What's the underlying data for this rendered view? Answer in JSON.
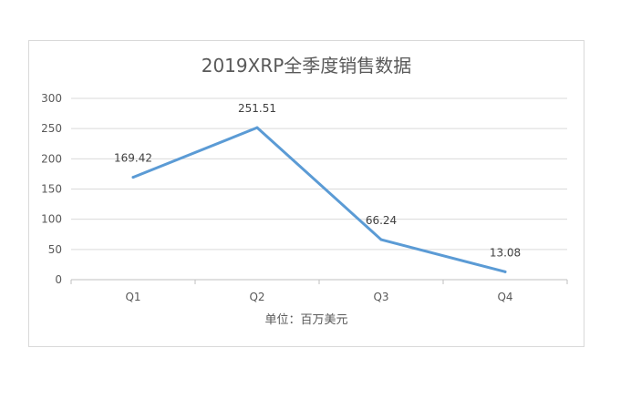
{
  "chart_data": {
    "type": "line",
    "title": "2019XRP全季度销售数据",
    "categories": [
      "Q1",
      "Q2",
      "Q3",
      "Q4"
    ],
    "series": [
      {
        "values": [
          169.42,
          251.51,
          66.24,
          13.08
        ],
        "data_labels": [
          "169.42",
          "251.51",
          "66.24",
          "13.08"
        ]
      }
    ],
    "xlabel": "单位：百万美元",
    "ylabel": "",
    "ylim": [
      0,
      300
    ],
    "yticks": [
      "0",
      "50",
      "100",
      "150",
      "200",
      "250",
      "300"
    ],
    "grid": true,
    "line_color": "#5b9bd5",
    "legend": "none"
  }
}
